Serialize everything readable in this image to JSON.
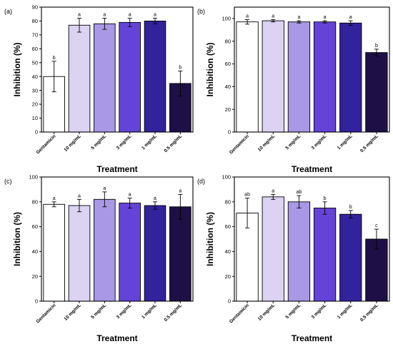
{
  "colors": [
    "#ffffff",
    "#dcd2f2",
    "#a898e6",
    "#6444d8",
    "#32229c",
    "#1e1046"
  ],
  "chart_data": [
    {
      "type": "bar",
      "panel_label": "(a)",
      "categories": [
        "Gentamicin",
        "10 mg/mL",
        "5 mg/mL",
        "3 mg/mL",
        "1 mg/mL",
        "0.5 mg/mL"
      ],
      "values": [
        40,
        77,
        78,
        79,
        80,
        35
      ],
      "errors": [
        11,
        5,
        4,
        3,
        2,
        9
      ],
      "significance": [
        "b",
        "a",
        "a",
        "a",
        "a",
        "b"
      ],
      "xlabel": "Treatment",
      "ylabel": "Inhibition (%)",
      "ylim": [
        0,
        90
      ],
      "yticks": [
        0,
        10,
        20,
        30,
        40,
        50,
        60,
        70,
        80,
        90
      ]
    },
    {
      "type": "bar",
      "panel_label": "(b)",
      "categories": [
        "Gentamicin",
        "10 mg/mL",
        "5 mg/mL",
        "3 mg/mL",
        "1 mg/mL",
        "0.5 mg/mL"
      ],
      "values": [
        97,
        98,
        97,
        97,
        96,
        70
      ],
      "errors": [
        2,
        1,
        1,
        1,
        2,
        3
      ],
      "significance": [
        "a",
        "a",
        "a",
        "a",
        "a",
        "b"
      ],
      "xlabel": "Treatment",
      "ylabel": "Inhibition (%)",
      "ylim": [
        0,
        110
      ],
      "yticks": [
        0,
        20,
        40,
        60,
        80,
        100
      ]
    },
    {
      "type": "bar",
      "panel_label": "(c)",
      "categories": [
        "Gentamicin",
        "10 mg/mL",
        "5 mg/mL",
        "3 mg/mL",
        "1 mg/mL",
        "0.5 mg/mL"
      ],
      "values": [
        78,
        77,
        82,
        79,
        77,
        76
      ],
      "errors": [
        2,
        5,
        6,
        4,
        3,
        10
      ],
      "significance": [
        "a",
        "a",
        "a",
        "a",
        "a",
        "a"
      ],
      "xlabel": "Treatment",
      "ylabel": "Inhibition (%)",
      "ylim": [
        0,
        100
      ],
      "yticks": [
        0,
        20,
        40,
        60,
        80,
        100
      ]
    },
    {
      "type": "bar",
      "panel_label": "(d)",
      "categories": [
        "Gentamicin",
        "10 mg/mL",
        "5 mg/mL",
        "3 mg/mL",
        "1 mg/mL",
        "0.5 mg/mL"
      ],
      "values": [
        71,
        84,
        80,
        75,
        70,
        50
      ],
      "errors": [
        12,
        2,
        5,
        5,
        3,
        8
      ],
      "significance": [
        "ab",
        "a",
        "ab",
        "b",
        "b",
        "c"
      ],
      "xlabel": "Treatment",
      "ylabel": "Inhibition (%)",
      "ylim": [
        0,
        100
      ],
      "yticks": [
        0,
        20,
        40,
        60,
        80,
        100
      ]
    }
  ]
}
